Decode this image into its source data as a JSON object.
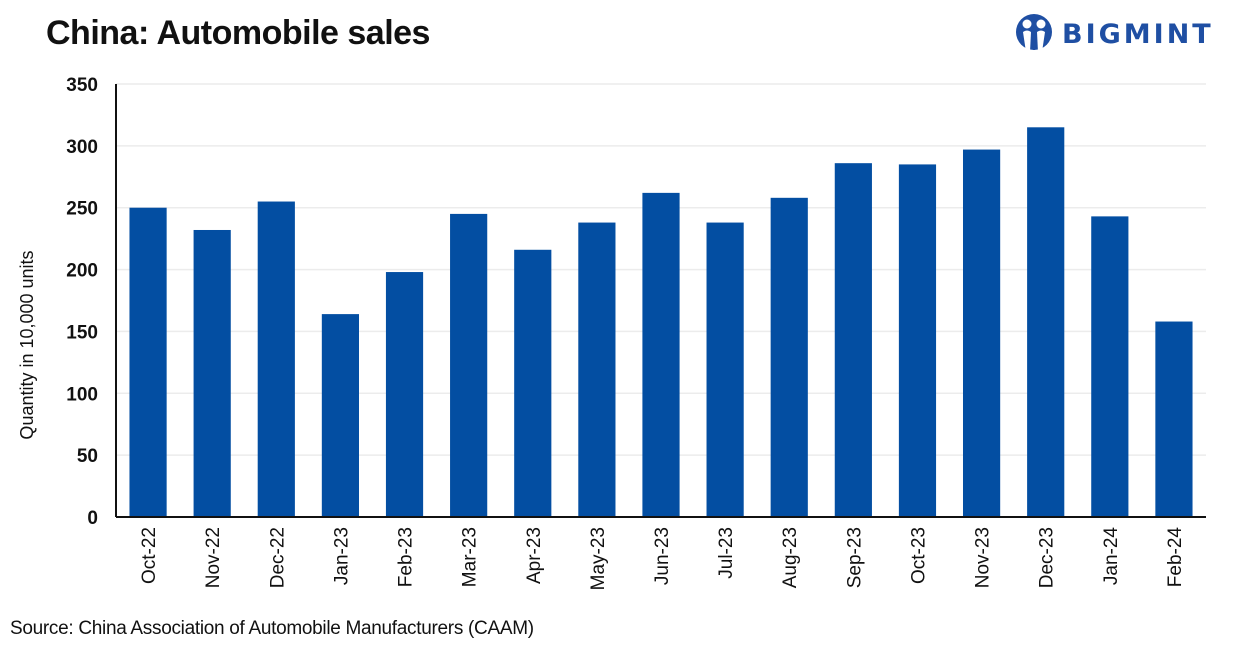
{
  "header": {
    "title": "China: Automobile sales",
    "logo_text": "BIGMINT",
    "logo_icon": "bigmint-people-icon"
  },
  "footer": {
    "source": "Source: China Association of Automobile Manufacturers (CAAM)"
  },
  "colors": {
    "bar": "#034ea2",
    "grid": "#ececec",
    "axis": "#111111",
    "logo": "#1f4fa3"
  },
  "chart_data": {
    "type": "bar",
    "title": "China: Automobile sales",
    "xlabel": "",
    "ylabel": "Quantity in 10,000 units",
    "ylim": [
      0,
      350
    ],
    "yticks": [
      0,
      50,
      100,
      150,
      200,
      250,
      300,
      350
    ],
    "grid": true,
    "legend": "none",
    "categories": [
      "Oct-22",
      "Nov-22",
      "Dec-22",
      "Jan-23",
      "Feb-23",
      "Mar-23",
      "Apr-23",
      "May-23",
      "Jun-23",
      "Jul-23",
      "Aug-23",
      "Sep-23",
      "Oct-23",
      "Nov-23",
      "Dec-23",
      "Jan-24",
      "Feb-24"
    ],
    "values": [
      250,
      232,
      255,
      164,
      198,
      245,
      216,
      238,
      262,
      238,
      258,
      286,
      285,
      297,
      315,
      243,
      158
    ]
  }
}
